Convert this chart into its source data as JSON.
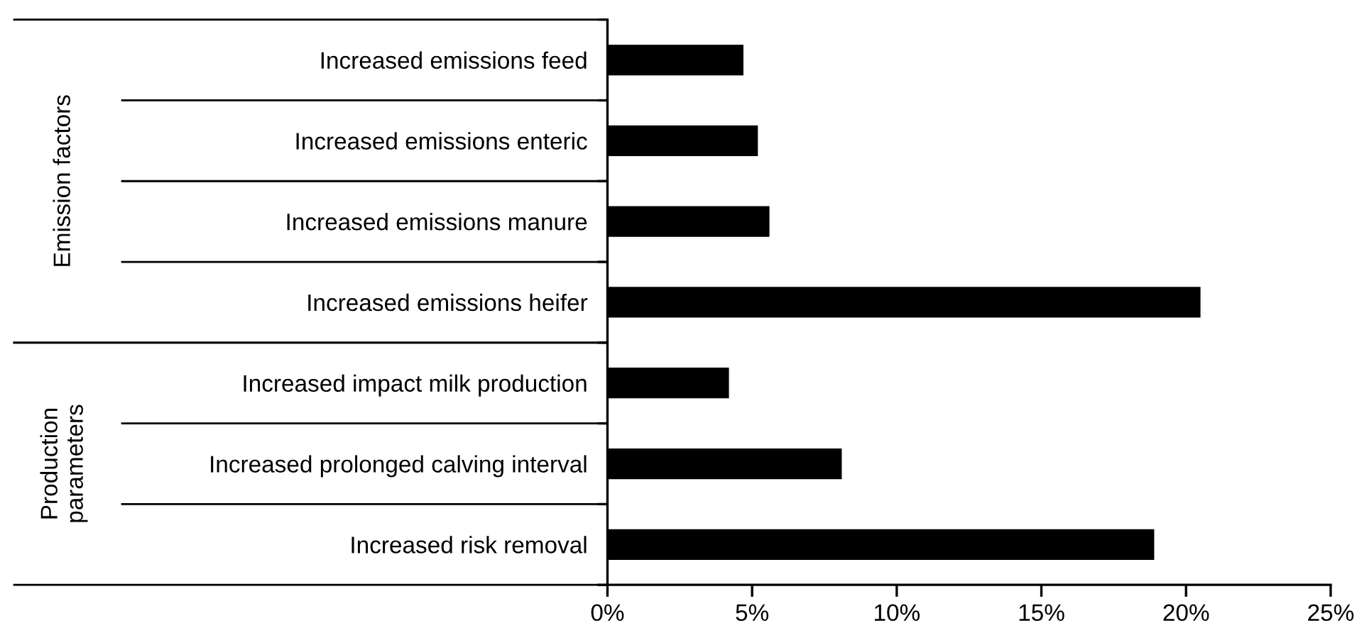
{
  "chart_data": {
    "type": "bar",
    "orientation": "horizontal",
    "categories": [
      "Increased emissions feed",
      "Increased emissions enteric",
      "Increased emissions manure",
      "Increased emissions heifer",
      "Increased impact milk production",
      "Increased prolonged calving interval",
      "Increased risk removal"
    ],
    "values": [
      4.7,
      5.2,
      5.6,
      20.5,
      4.2,
      8.1,
      18.9
    ],
    "color": "#000000",
    "xlim": [
      0,
      25
    ],
    "xticks": [
      {
        "value": 0,
        "label": "0%"
      },
      {
        "value": 5,
        "label": "5%"
      },
      {
        "value": 10,
        "label": "10%"
      },
      {
        "value": 15,
        "label": "15%"
      },
      {
        "value": 20,
        "label": "20%"
      },
      {
        "value": 25,
        "label": "25%"
      }
    ],
    "annotations": [
      "Emission factors",
      "Production\nparameters"
    ],
    "grid": false,
    "legend": false
  }
}
